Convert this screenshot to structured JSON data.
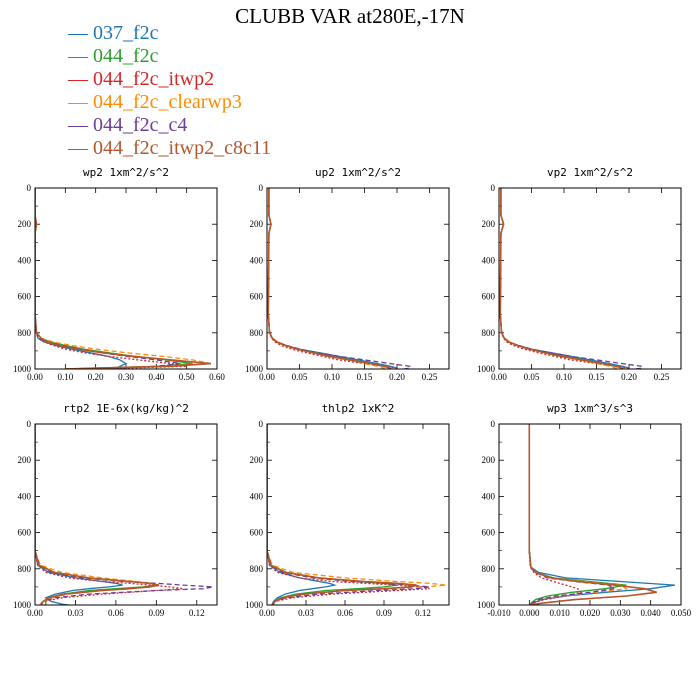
{
  "title": "CLUBB VAR at280E,-17N",
  "legend": [
    {
      "label": "037_f2c",
      "color": "#1f77b4"
    },
    {
      "label": "044_f2c",
      "color": "#2ca02c"
    },
    {
      "label": "044_f2c_itwp2",
      "color": "#d62728"
    },
    {
      "label": "044_f2c_clearwp3",
      "color": "#ff8c00"
    },
    {
      "label": "044_f2c_c4",
      "color": "#6a3d9a"
    },
    {
      "label": "044_f2c_itwp2_c8c11",
      "color": "#b5562b"
    }
  ],
  "chart_data": [
    {
      "type": "line",
      "title": "wp2  1xm^2/s^2",
      "xlim": [
        0,
        0.6
      ],
      "ylim": [
        1000,
        0
      ],
      "xticks": [
        "0.00",
        "0.10",
        "0.20",
        "0.30",
        "0.40",
        "0.50",
        "0.60"
      ],
      "xtick_values": [
        0,
        0.1,
        0.2,
        0.3,
        0.4,
        0.5,
        0.6
      ],
      "yticks": [
        0,
        200,
        400,
        600,
        800,
        1000
      ],
      "y": [
        0,
        150,
        200,
        250,
        700,
        800,
        830,
        850,
        870,
        890,
        910,
        930,
        950,
        970,
        985,
        995,
        1000
      ],
      "series": [
        {
          "name": "037_f2c",
          "x": [
            0,
            0,
            0.005,
            0,
            0,
            0.005,
            0.01,
            0.03,
            0.07,
            0.12,
            0.18,
            0.24,
            0.28,
            0.3,
            0.28,
            0.27,
            0.28
          ]
        },
        {
          "name": "044_f2c",
          "x": [
            0,
            0,
            0.005,
            0,
            0,
            0.005,
            0.02,
            0.05,
            0.1,
            0.16,
            0.24,
            0.33,
            0.43,
            0.52,
            0.4,
            0.2,
            0.1
          ]
        },
        {
          "name": "044_f2c_itwp2",
          "x": [
            0,
            0,
            0.005,
            0,
            0,
            0.005,
            0.01,
            0.03,
            0.06,
            0.1,
            0.16,
            0.24,
            0.34,
            0.45,
            0.5,
            0.3,
            0.1
          ]
        },
        {
          "name": "044_f2c_clearwp3",
          "x": [
            0,
            0,
            0.005,
            0,
            0,
            0.005,
            0.02,
            0.06,
            0.12,
            0.2,
            0.3,
            0.42,
            0.52,
            0.58,
            0.4,
            0.2,
            0.1
          ]
        },
        {
          "name": "044_f2c_c4",
          "x": [
            0,
            0,
            0.005,
            0,
            0,
            0.005,
            0.01,
            0.04,
            0.09,
            0.15,
            0.22,
            0.3,
            0.4,
            0.48,
            0.4,
            0.25,
            0.1
          ]
        },
        {
          "name": "044_f2c_itwp2_c8c11",
          "x": [
            0,
            0,
            0.005,
            0,
            0,
            0.005,
            0.02,
            0.04,
            0.08,
            0.14,
            0.22,
            0.32,
            0.45,
            0.58,
            0.45,
            0.2,
            0.1
          ]
        }
      ]
    },
    {
      "type": "line",
      "title": "up2  1xm^2/s^2",
      "xlim": [
        0,
        0.28
      ],
      "ylim": [
        1000,
        0
      ],
      "xticks": [
        "0.00",
        "0.05",
        "0.10",
        "0.15",
        "0.20",
        "0.25"
      ],
      "xtick_values": [
        0,
        0.05,
        0.1,
        0.15,
        0.2,
        0.25
      ],
      "yticks": [
        0,
        200,
        400,
        600,
        800,
        1000
      ],
      "y": [
        0,
        150,
        200,
        250,
        700,
        800,
        830,
        850,
        870,
        890,
        910,
        930,
        950,
        970,
        985,
        995,
        1000
      ],
      "series": [
        {
          "name": "037_f2c",
          "x": [
            0.003,
            0.003,
            0.006,
            0.003,
            0.002,
            0.004,
            0.008,
            0.015,
            0.03,
            0.05,
            0.08,
            0.11,
            0.14,
            0.17,
            0.19,
            0.2,
            0.2
          ]
        },
        {
          "name": "044_f2c",
          "x": [
            0.003,
            0.003,
            0.006,
            0.003,
            0.002,
            0.004,
            0.008,
            0.014,
            0.028,
            0.048,
            0.075,
            0.1,
            0.13,
            0.16,
            0.18,
            0.19,
            0.19
          ]
        },
        {
          "name": "044_f2c_itwp2",
          "x": [
            0.003,
            0.003,
            0.006,
            0.003,
            0.002,
            0.004,
            0.007,
            0.012,
            0.022,
            0.038,
            0.06,
            0.085,
            0.11,
            0.15,
            0.18,
            0.2,
            0.2
          ]
        },
        {
          "name": "044_f2c_clearwp3",
          "x": [
            0.003,
            0.003,
            0.006,
            0.003,
            0.002,
            0.004,
            0.009,
            0.016,
            0.03,
            0.05,
            0.076,
            0.1,
            0.125,
            0.15,
            0.17,
            0.18,
            0.18
          ]
        },
        {
          "name": "044_f2c_c4",
          "x": [
            0.003,
            0.003,
            0.006,
            0.003,
            0.002,
            0.004,
            0.008,
            0.015,
            0.03,
            0.05,
            0.078,
            0.11,
            0.15,
            0.19,
            0.22,
            0.22,
            0.21
          ]
        },
        {
          "name": "044_f2c_itwp2_c8c11",
          "x": [
            0.003,
            0.003,
            0.006,
            0.003,
            0.002,
            0.004,
            0.008,
            0.015,
            0.028,
            0.046,
            0.07,
            0.095,
            0.125,
            0.16,
            0.18,
            0.19,
            0.19
          ]
        }
      ]
    },
    {
      "type": "line",
      "title": "vp2  1xm^2/s^2",
      "xlim": [
        0,
        0.28
      ],
      "ylim": [
        1000,
        0
      ],
      "xticks": [
        "0.00",
        "0.05",
        "0.10",
        "0.15",
        "0.20",
        "0.25"
      ],
      "xtick_values": [
        0,
        0.05,
        0.1,
        0.15,
        0.2,
        0.25
      ],
      "yticks": [
        0,
        200,
        400,
        600,
        800,
        1000
      ],
      "y": [
        0,
        150,
        200,
        250,
        700,
        800,
        830,
        850,
        870,
        890,
        910,
        930,
        950,
        970,
        985,
        995,
        1000
      ],
      "series": [
        {
          "name": "037_f2c",
          "x": [
            0.003,
            0.003,
            0.007,
            0.003,
            0.002,
            0.004,
            0.008,
            0.015,
            0.03,
            0.05,
            0.08,
            0.11,
            0.14,
            0.17,
            0.19,
            0.2,
            0.2
          ]
        },
        {
          "name": "044_f2c",
          "x": [
            0.003,
            0.003,
            0.007,
            0.003,
            0.002,
            0.004,
            0.008,
            0.014,
            0.028,
            0.048,
            0.075,
            0.1,
            0.13,
            0.16,
            0.18,
            0.19,
            0.19
          ]
        },
        {
          "name": "044_f2c_itwp2",
          "x": [
            0.003,
            0.003,
            0.007,
            0.003,
            0.002,
            0.004,
            0.007,
            0.012,
            0.022,
            0.038,
            0.06,
            0.085,
            0.11,
            0.15,
            0.18,
            0.2,
            0.2
          ]
        },
        {
          "name": "044_f2c_clearwp3",
          "x": [
            0.003,
            0.003,
            0.007,
            0.003,
            0.002,
            0.004,
            0.009,
            0.016,
            0.03,
            0.05,
            0.076,
            0.1,
            0.125,
            0.15,
            0.17,
            0.18,
            0.18
          ]
        },
        {
          "name": "044_f2c_c4",
          "x": [
            0.003,
            0.003,
            0.007,
            0.003,
            0.002,
            0.004,
            0.008,
            0.015,
            0.03,
            0.05,
            0.078,
            0.11,
            0.15,
            0.19,
            0.22,
            0.22,
            0.21
          ]
        },
        {
          "name": "044_f2c_itwp2_c8c11",
          "x": [
            0.003,
            0.003,
            0.007,
            0.003,
            0.002,
            0.004,
            0.008,
            0.015,
            0.028,
            0.046,
            0.07,
            0.095,
            0.125,
            0.16,
            0.18,
            0.19,
            0.19
          ]
        }
      ]
    },
    {
      "type": "line",
      "title": "rtp2  1E-6x(kg/kg)^2",
      "xlim": [
        0,
        0.135
      ],
      "ylim": [
        1000,
        0
      ],
      "xticks": [
        "0.00",
        "0.03",
        "0.06",
        "0.09",
        "0.12"
      ],
      "xtick_values": [
        0,
        0.03,
        0.06,
        0.09,
        0.12
      ],
      "yticks": [
        0,
        200,
        400,
        600,
        800,
        1000
      ],
      "y": [
        0,
        700,
        780,
        820,
        850,
        870,
        880,
        890,
        900,
        910,
        920,
        940,
        960,
        980,
        995,
        1000
      ],
      "series": [
        {
          "name": "037_f2c",
          "x": [
            0,
            0,
            0.002,
            0.01,
            0.03,
            0.05,
            0.06,
            0.065,
            0.055,
            0.04,
            0.028,
            0.015,
            0.008,
            0.012,
            0.02,
            0.025
          ]
        },
        {
          "name": "044_f2c",
          "x": [
            0,
            0,
            0.003,
            0.015,
            0.04,
            0.07,
            0.085,
            0.09,
            0.08,
            0.06,
            0.04,
            0.02,
            0.01,
            0.008,
            0.008,
            0.008
          ]
        },
        {
          "name": "044_f2c_itwp2",
          "x": [
            0,
            0,
            0.002,
            0.008,
            0.025,
            0.05,
            0.07,
            0.085,
            0.1,
            0.11,
            0.09,
            0.05,
            0.02,
            0.006,
            0.004,
            0.004
          ]
        },
        {
          "name": "044_f2c_clearwp3",
          "x": [
            0,
            0,
            0.004,
            0.02,
            0.05,
            0.075,
            0.085,
            0.09,
            0.085,
            0.07,
            0.05,
            0.025,
            0.012,
            0.006,
            0.005,
            0.005
          ]
        },
        {
          "name": "044_f2c_c4",
          "x": [
            0,
            0,
            0.003,
            0.012,
            0.035,
            0.065,
            0.09,
            0.11,
            0.132,
            0.125,
            0.09,
            0.04,
            0.015,
            0.006,
            0.004,
            0.004
          ]
        },
        {
          "name": "044_f2c_itwp2_c8c11",
          "x": [
            0,
            0,
            0.003,
            0.014,
            0.04,
            0.07,
            0.085,
            0.092,
            0.085,
            0.07,
            0.05,
            0.022,
            0.01,
            0.006,
            0.005,
            0.005
          ]
        }
      ]
    },
    {
      "type": "line",
      "title": "thlp2  1xK^2",
      "xlim": [
        0,
        0.14
      ],
      "ylim": [
        1000,
        0
      ],
      "xticks": [
        "0.00",
        "0.03",
        "0.06",
        "0.09",
        "0.12"
      ],
      "xtick_values": [
        0,
        0.03,
        0.06,
        0.09,
        0.12
      ],
      "yticks": [
        0,
        200,
        400,
        600,
        800,
        1000
      ],
      "y": [
        0,
        700,
        780,
        820,
        850,
        870,
        880,
        890,
        900,
        910,
        920,
        940,
        960,
        980,
        995,
        1000
      ],
      "series": [
        {
          "name": "037_f2c",
          "x": [
            0,
            0,
            0.002,
            0.01,
            0.025,
            0.04,
            0.048,
            0.052,
            0.045,
            0.035,
            0.025,
            0.014,
            0.008,
            0.005,
            0.004,
            0.004
          ]
        },
        {
          "name": "044_f2c",
          "x": [
            0,
            0,
            0.003,
            0.015,
            0.04,
            0.07,
            0.09,
            0.1,
            0.09,
            0.07,
            0.045,
            0.022,
            0.01,
            0.006,
            0.005,
            0.005
          ]
        },
        {
          "name": "044_f2c_itwp2",
          "x": [
            0,
            0,
            0.002,
            0.008,
            0.025,
            0.05,
            0.075,
            0.1,
            0.12,
            0.125,
            0.1,
            0.05,
            0.02,
            0.006,
            0.004,
            0.004
          ]
        },
        {
          "name": "044_f2c_clearwp3",
          "x": [
            0,
            0,
            0.004,
            0.02,
            0.06,
            0.1,
            0.125,
            0.138,
            0.12,
            0.09,
            0.06,
            0.03,
            0.012,
            0.006,
            0.005,
            0.005
          ]
        },
        {
          "name": "044_f2c_c4",
          "x": [
            0,
            0,
            0.003,
            0.012,
            0.035,
            0.065,
            0.09,
            0.11,
            0.125,
            0.115,
            0.085,
            0.04,
            0.015,
            0.006,
            0.004,
            0.004
          ]
        },
        {
          "name": "044_f2c_itwp2_c8c11",
          "x": [
            0,
            0,
            0.003,
            0.014,
            0.04,
            0.075,
            0.1,
            0.115,
            0.11,
            0.09,
            0.06,
            0.028,
            0.012,
            0.006,
            0.005,
            0.005
          ]
        }
      ]
    },
    {
      "type": "line",
      "title": "wp3  1xm^3/s^3",
      "xlim": [
        -0.01,
        0.05
      ],
      "ylim": [
        1000,
        0
      ],
      "xticks": [
        "-0.010",
        "0.000",
        "0.010",
        "0.020",
        "0.030",
        "0.040",
        "0.050"
      ],
      "xtick_values": [
        -0.01,
        0,
        0.01,
        0.02,
        0.03,
        0.04,
        0.05
      ],
      "yticks": [
        0,
        200,
        400,
        600,
        800,
        1000
      ],
      "y": [
        0,
        700,
        790,
        820,
        850,
        870,
        890,
        910,
        930,
        950,
        970,
        990,
        1000
      ],
      "series": [
        {
          "name": "037_f2c",
          "x": [
            0,
            0,
            0.0005,
            0.003,
            0.012,
            0.03,
            0.048,
            0.04,
            0.025,
            0.012,
            0.004,
            0.001,
            0
          ]
        },
        {
          "name": "044_f2c",
          "x": [
            0,
            0,
            0.0005,
            0.002,
            0.008,
            0.02,
            0.032,
            0.025,
            0.014,
            0.006,
            0.002,
            0.0005,
            0
          ]
        },
        {
          "name": "044_f2c_itwp2",
          "x": [
            0,
            0,
            0.0003,
            0.0015,
            0.004,
            0.008,
            0.012,
            0.016,
            0.017,
            0.012,
            0.005,
            0.001,
            0
          ]
        },
        {
          "name": "044_f2c_clearwp3",
          "x": [
            0,
            0,
            0.0005,
            0.002,
            0.008,
            0.018,
            0.03,
            0.032,
            0.022,
            0.01,
            0.003,
            0.0008,
            0
          ]
        },
        {
          "name": "044_f2c_c4",
          "x": [
            0,
            0,
            0.0004,
            0.0018,
            0.006,
            0.015,
            0.026,
            0.028,
            0.02,
            0.009,
            0.003,
            0.0008,
            0
          ]
        },
        {
          "name": "044_f2c_itwp2_c8c11",
          "x": [
            0,
            0,
            0.0005,
            0.002,
            0.007,
            0.016,
            0.028,
            0.038,
            0.042,
            0.032,
            0.015,
            0.004,
            0
          ]
        }
      ]
    }
  ]
}
